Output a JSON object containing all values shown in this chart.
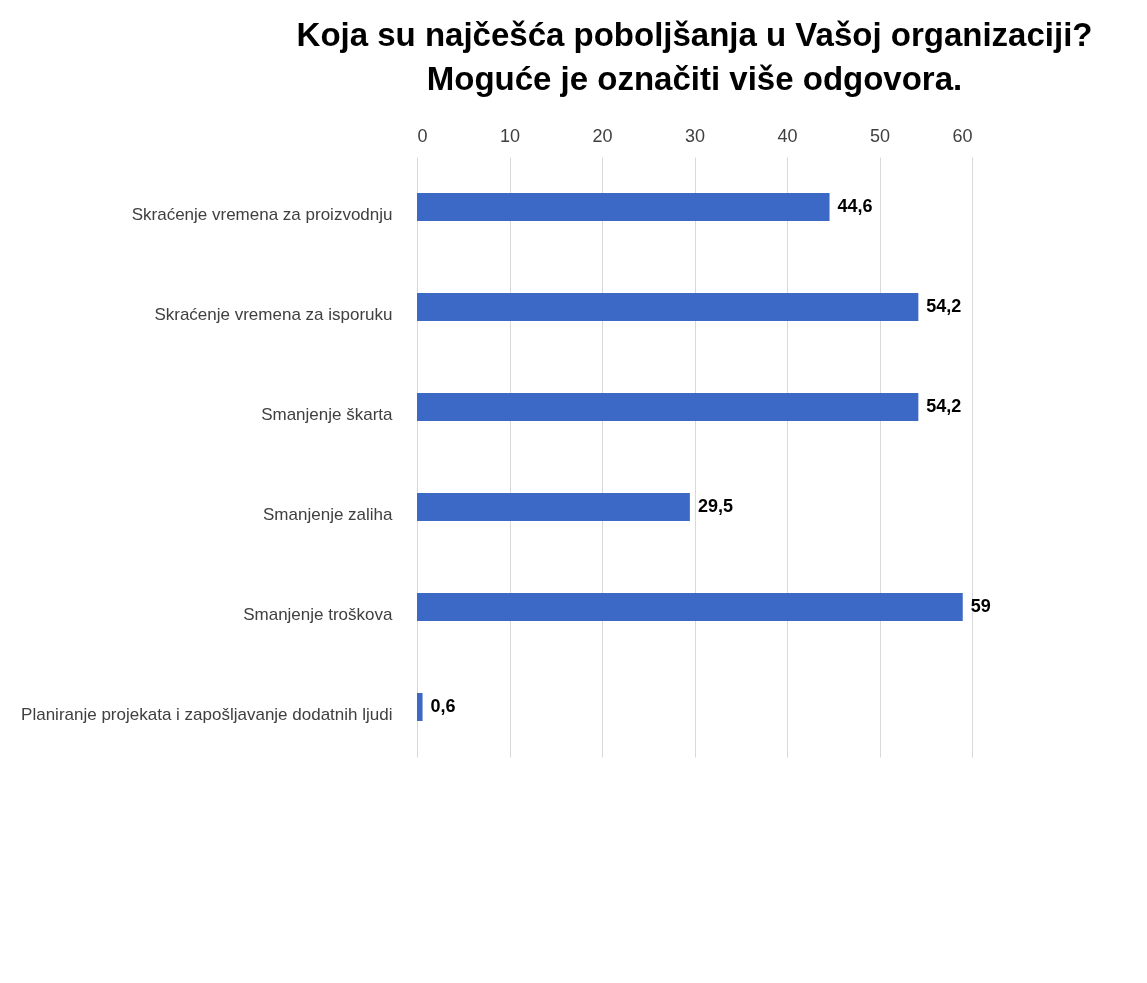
{
  "chart_data": {
    "type": "bar",
    "orientation": "horizontal",
    "title": [
      "Koja su najčešća poboljšanja u Vašoj organizaciji?",
      "Moguće je označiti više odgovora."
    ],
    "categories": [
      "Skraćenje vremena za proizvodnju",
      "Skraćenje vremena za isporuku",
      "Smanjenje škarta",
      "Smanjenje zaliha",
      "Smanjenje troškova",
      "Planiranje projekata i zapošljavanje dodatnih ljudi"
    ],
    "values": [
      44.6,
      54.2,
      54.2,
      29.5,
      59,
      0.6
    ],
    "value_labels": [
      "44,6",
      "54,2",
      "54,2",
      "29,5",
      "59",
      "0,6"
    ],
    "color": "#3d69c6",
    "xlim": [
      0,
      60
    ],
    "xticks": [
      0,
      10,
      20,
      30,
      40,
      50,
      60
    ],
    "grid": "x"
  }
}
